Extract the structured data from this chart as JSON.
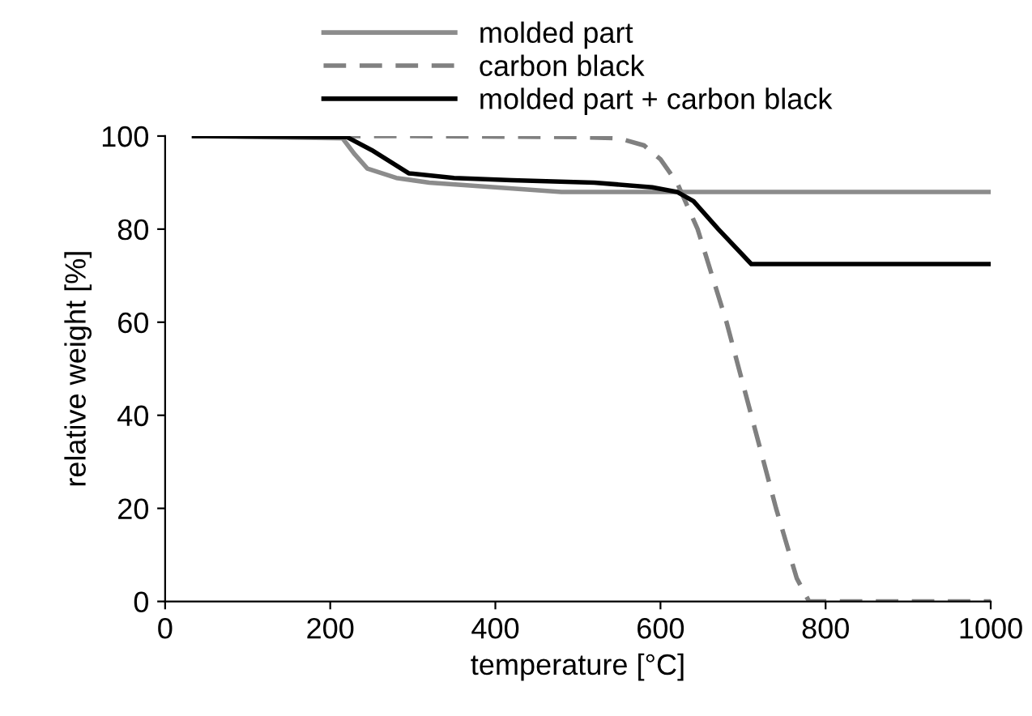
{
  "chart_data": {
    "type": "line",
    "xlabel": "temperature [°C]",
    "ylabel": "relative weight [%]",
    "xlim": [
      0,
      1000
    ],
    "xticks": [
      0,
      200,
      400,
      600,
      800,
      1000
    ],
    "ylim": [
      0,
      100
    ],
    "yticks": [
      0,
      20,
      40,
      60,
      80,
      100
    ],
    "grid": false,
    "legend": "top",
    "marker": "none",
    "series": [
      {
        "name": "molded part",
        "color": "#8c8c8c",
        "line_style": "solid",
        "x": [
          35,
          215,
          230,
          245,
          280,
          320,
          400,
          480,
          600,
          800,
          1000
        ],
        "values": [
          100,
          99.5,
          96,
          93,
          91,
          90,
          89,
          88,
          88,
          88,
          88
        ]
      },
      {
        "name": "carbon black",
        "color": "#808080",
        "line_style": "dashed",
        "x": [
          35,
          300,
          500,
          550,
          580,
          600,
          620,
          645,
          680,
          710,
          740,
          765,
          780,
          900,
          1000
        ],
        "values": [
          100,
          100,
          99.8,
          99.5,
          98,
          95,
          90,
          80,
          60,
          40,
          20,
          5,
          0,
          0,
          0
        ]
      },
      {
        "name": "molded part + carbon black",
        "color": "#000000",
        "line_style": "solid",
        "x": [
          35,
          220,
          250,
          295,
          350,
          420,
          520,
          590,
          620,
          640,
          670,
          710,
          800,
          1000
        ],
        "values": [
          100,
          99.8,
          97,
          92,
          91,
          90.5,
          90,
          89,
          88,
          86,
          80,
          72.5,
          72.5,
          72.5
        ]
      }
    ]
  }
}
